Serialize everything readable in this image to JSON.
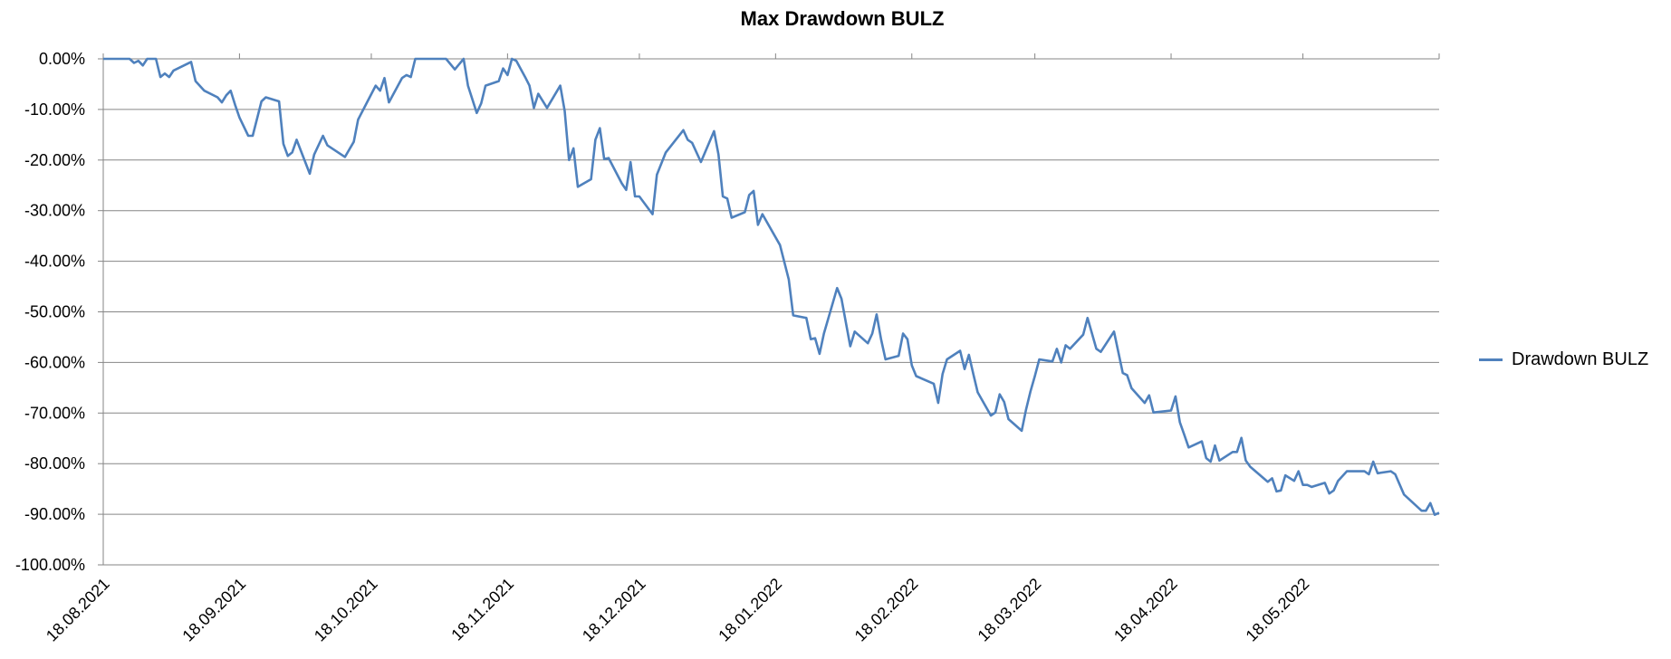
{
  "chart_data": {
    "type": "line",
    "title": "Max Drawdown BULZ",
    "xlabel": "",
    "ylabel": "",
    "ylim": [
      -100,
      0
    ],
    "y_ticks": [
      "0.00%",
      "-10.00%",
      "-20.00%",
      "-30.00%",
      "-40.00%",
      "-50.00%",
      "-60.00%",
      "-70.00%",
      "-80.00%",
      "-90.00%",
      "-100.00%"
    ],
    "y_tick_values": [
      0,
      -10,
      -20,
      -30,
      -40,
      -50,
      -60,
      -70,
      -80,
      -90,
      -100
    ],
    "x_range": [
      "2021-08-18",
      "2022-06-18"
    ],
    "x_ticks": [
      "18.08.2021",
      "18.09.2021",
      "18.10.2021",
      "18.11.2021",
      "18.12.2021",
      "18.01.2022",
      "18.02.2022",
      "18.03.2022",
      "18.04.2022",
      "18.05.2022"
    ],
    "x_tick_dates": [
      "2021-08-18",
      "2021-09-18",
      "2021-10-18",
      "2021-11-18",
      "2021-12-18",
      "2022-01-18",
      "2022-02-18",
      "2022-03-18",
      "2022-04-18",
      "2022-05-18"
    ],
    "grid": "horizontal",
    "legend": "right",
    "line_color": "#4F81BD",
    "series": [
      {
        "name": "Drawdown BULZ",
        "points": [
          [
            "2021-08-18",
            0
          ],
          [
            "2021-08-24",
            0
          ],
          [
            "2021-08-25",
            -0.8
          ],
          [
            "2021-08-26",
            -0.4
          ],
          [
            "2021-08-27",
            -1.3
          ],
          [
            "2021-08-28",
            0
          ],
          [
            "2021-08-30",
            0
          ],
          [
            "2021-08-31",
            -3.6
          ],
          [
            "2021-09-01",
            -2.9
          ],
          [
            "2021-09-02",
            -3.6
          ],
          [
            "2021-09-03",
            -2.3
          ],
          [
            "2021-09-07",
            -0.6
          ],
          [
            "2021-09-08",
            -4.4
          ],
          [
            "2021-09-10",
            -6.3
          ],
          [
            "2021-09-13",
            -7.6
          ],
          [
            "2021-09-14",
            -8.6
          ],
          [
            "2021-09-15",
            -7.2
          ],
          [
            "2021-09-16",
            -6.3
          ],
          [
            "2021-09-17",
            -9.1
          ],
          [
            "2021-09-18",
            -11.6
          ],
          [
            "2021-09-20",
            -15.2
          ],
          [
            "2021-09-21",
            -15.2
          ],
          [
            "2021-09-23",
            -8.4
          ],
          [
            "2021-09-24",
            -7.6
          ],
          [
            "2021-09-27",
            -8.4
          ],
          [
            "2021-09-28",
            -16.8
          ],
          [
            "2021-09-29",
            -19.2
          ],
          [
            "2021-09-30",
            -18.5
          ],
          [
            "2021-10-01",
            -16.0
          ],
          [
            "2021-10-04",
            -22.7
          ],
          [
            "2021-10-05",
            -18.9
          ],
          [
            "2021-10-07",
            -15.2
          ],
          [
            "2021-10-08",
            -17.1
          ],
          [
            "2021-10-12",
            -19.4
          ],
          [
            "2021-10-14",
            -16.4
          ],
          [
            "2021-10-15",
            -12.0
          ],
          [
            "2021-10-16",
            -10.3
          ],
          [
            "2021-10-19",
            -5.3
          ],
          [
            "2021-10-20",
            -6.3
          ],
          [
            "2021-10-21",
            -3.8
          ],
          [
            "2021-10-22",
            -8.6
          ],
          [
            "2021-10-25",
            -3.8
          ],
          [
            "2021-10-26",
            -3.2
          ],
          [
            "2021-10-27",
            -3.6
          ],
          [
            "2021-10-28",
            0
          ],
          [
            "2021-11-04",
            0
          ],
          [
            "2021-11-06",
            -2.1
          ],
          [
            "2021-11-08",
            0
          ],
          [
            "2021-11-09",
            -5.3
          ],
          [
            "2021-11-11",
            -10.7
          ],
          [
            "2021-11-12",
            -8.8
          ],
          [
            "2021-11-13",
            -5.3
          ],
          [
            "2021-11-16",
            -4.4
          ],
          [
            "2021-11-17",
            -1.9
          ],
          [
            "2021-11-18",
            -3.2
          ],
          [
            "2021-11-19",
            0
          ],
          [
            "2021-11-20",
            -0.4
          ],
          [
            "2021-11-22",
            -3.6
          ],
          [
            "2021-11-23",
            -5.3
          ],
          [
            "2021-11-24",
            -9.7
          ],
          [
            "2021-11-25",
            -6.9
          ],
          [
            "2021-11-27",
            -9.7
          ],
          [
            "2021-11-30",
            -5.3
          ],
          [
            "2021-12-01",
            -10.3
          ],
          [
            "2021-12-02",
            -20.0
          ],
          [
            "2021-12-03",
            -17.7
          ],
          [
            "2021-12-04",
            -25.3
          ],
          [
            "2021-12-07",
            -23.8
          ],
          [
            "2021-12-08",
            -16.0
          ],
          [
            "2021-12-09",
            -13.7
          ],
          [
            "2021-12-10",
            -19.8
          ],
          [
            "2021-12-11",
            -19.6
          ],
          [
            "2021-12-14",
            -24.6
          ],
          [
            "2021-12-15",
            -25.9
          ],
          [
            "2021-12-16",
            -20.4
          ],
          [
            "2021-12-17",
            -27.2
          ],
          [
            "2021-12-18",
            -27.2
          ],
          [
            "2021-12-21",
            -30.7
          ],
          [
            "2021-12-22",
            -22.9
          ],
          [
            "2021-12-24",
            -18.5
          ],
          [
            "2021-12-28",
            -14.1
          ],
          [
            "2021-12-29",
            -16.0
          ],
          [
            "2021-12-30",
            -16.6
          ],
          [
            "2022-01-01",
            -20.4
          ],
          [
            "2022-01-04",
            -14.3
          ],
          [
            "2022-01-05",
            -18.9
          ],
          [
            "2022-01-06",
            -27.2
          ],
          [
            "2022-01-07",
            -27.6
          ],
          [
            "2022-01-08",
            -31.4
          ],
          [
            "2022-01-11",
            -30.3
          ],
          [
            "2022-01-12",
            -26.9
          ],
          [
            "2022-01-13",
            -26.1
          ],
          [
            "2022-01-14",
            -32.8
          ],
          [
            "2022-01-15",
            -30.7
          ],
          [
            "2022-01-19",
            -36.8
          ],
          [
            "2022-01-21",
            -43.6
          ],
          [
            "2022-01-22",
            -50.7
          ],
          [
            "2022-01-25",
            -51.2
          ],
          [
            "2022-01-26",
            -55.4
          ],
          [
            "2022-01-27",
            -55.2
          ],
          [
            "2022-01-28",
            -58.3
          ],
          [
            "2022-01-29",
            -54.3
          ],
          [
            "2022-02-01",
            -45.3
          ],
          [
            "2022-02-02",
            -47.4
          ],
          [
            "2022-02-04",
            -56.8
          ],
          [
            "2022-02-05",
            -53.9
          ],
          [
            "2022-02-08",
            -56.2
          ],
          [
            "2022-02-09",
            -54.3
          ],
          [
            "2022-02-10",
            -50.5
          ],
          [
            "2022-02-11",
            -55.4
          ],
          [
            "2022-02-12",
            -59.4
          ],
          [
            "2022-02-15",
            -58.7
          ],
          [
            "2022-02-16",
            -54.3
          ],
          [
            "2022-02-17",
            -55.4
          ],
          [
            "2022-02-18",
            -60.6
          ],
          [
            "2022-02-19",
            -62.7
          ],
          [
            "2022-02-23",
            -64.2
          ],
          [
            "2022-02-24",
            -68.0
          ],
          [
            "2022-02-25",
            -62.3
          ],
          [
            "2022-02-26",
            -59.4
          ],
          [
            "2022-03-01",
            -57.7
          ],
          [
            "2022-03-02",
            -61.3
          ],
          [
            "2022-03-03",
            -58.5
          ],
          [
            "2022-03-04",
            -62.3
          ],
          [
            "2022-03-05",
            -65.9
          ],
          [
            "2022-03-08",
            -70.5
          ],
          [
            "2022-03-09",
            -69.9
          ],
          [
            "2022-03-10",
            -66.3
          ],
          [
            "2022-03-11",
            -67.8
          ],
          [
            "2022-03-12",
            -71.2
          ],
          [
            "2022-03-15",
            -73.5
          ],
          [
            "2022-03-16",
            -69.3
          ],
          [
            "2022-03-17",
            -65.7
          ],
          [
            "2022-03-18",
            -62.7
          ],
          [
            "2022-03-19",
            -59.4
          ],
          [
            "2022-03-22",
            -59.8
          ],
          [
            "2022-03-23",
            -57.3
          ],
          [
            "2022-03-24",
            -60.0
          ],
          [
            "2022-03-25",
            -56.6
          ],
          [
            "2022-03-26",
            -57.3
          ],
          [
            "2022-03-29",
            -54.5
          ],
          [
            "2022-03-30",
            -51.2
          ],
          [
            "2022-04-01",
            -57.3
          ],
          [
            "2022-04-02",
            -57.9
          ],
          [
            "2022-04-05",
            -53.9
          ],
          [
            "2022-04-07",
            -62.1
          ],
          [
            "2022-04-08",
            -62.5
          ],
          [
            "2022-04-09",
            -65.1
          ],
          [
            "2022-04-12",
            -68.0
          ],
          [
            "2022-04-13",
            -66.5
          ],
          [
            "2022-04-14",
            -69.9
          ],
          [
            "2022-04-18",
            -69.5
          ],
          [
            "2022-04-19",
            -66.7
          ],
          [
            "2022-04-20",
            -71.8
          ],
          [
            "2022-04-21",
            -74.3
          ],
          [
            "2022-04-22",
            -76.8
          ],
          [
            "2022-04-25",
            -75.6
          ],
          [
            "2022-04-26",
            -78.9
          ],
          [
            "2022-04-27",
            -79.6
          ],
          [
            "2022-04-28",
            -76.4
          ],
          [
            "2022-04-29",
            -79.4
          ],
          [
            "2022-05-02",
            -77.7
          ],
          [
            "2022-05-03",
            -77.7
          ],
          [
            "2022-05-04",
            -74.9
          ],
          [
            "2022-05-05",
            -79.4
          ],
          [
            "2022-05-06",
            -80.6
          ],
          [
            "2022-05-10",
            -83.6
          ],
          [
            "2022-05-11",
            -82.9
          ],
          [
            "2022-05-12",
            -85.5
          ],
          [
            "2022-05-13",
            -85.3
          ],
          [
            "2022-05-14",
            -82.3
          ],
          [
            "2022-05-16",
            -83.4
          ],
          [
            "2022-05-17",
            -81.5
          ],
          [
            "2022-05-18",
            -84.2
          ],
          [
            "2022-05-19",
            -84.2
          ],
          [
            "2022-05-20",
            -84.6
          ],
          [
            "2022-05-23",
            -83.8
          ],
          [
            "2022-05-24",
            -85.9
          ],
          [
            "2022-05-25",
            -85.3
          ],
          [
            "2022-05-26",
            -83.4
          ],
          [
            "2022-05-28",
            -81.5
          ],
          [
            "2022-06-01",
            -81.5
          ],
          [
            "2022-06-02",
            -82.1
          ],
          [
            "2022-06-03",
            -79.6
          ],
          [
            "2022-06-04",
            -81.9
          ],
          [
            "2022-06-07",
            -81.5
          ],
          [
            "2022-06-08",
            -82.1
          ],
          [
            "2022-06-10",
            -86.1
          ],
          [
            "2022-06-14",
            -89.3
          ],
          [
            "2022-06-15",
            -89.3
          ],
          [
            "2022-06-16",
            -87.8
          ],
          [
            "2022-06-17",
            -90.1
          ],
          [
            "2022-06-18",
            -89.7
          ]
        ]
      }
    ]
  }
}
